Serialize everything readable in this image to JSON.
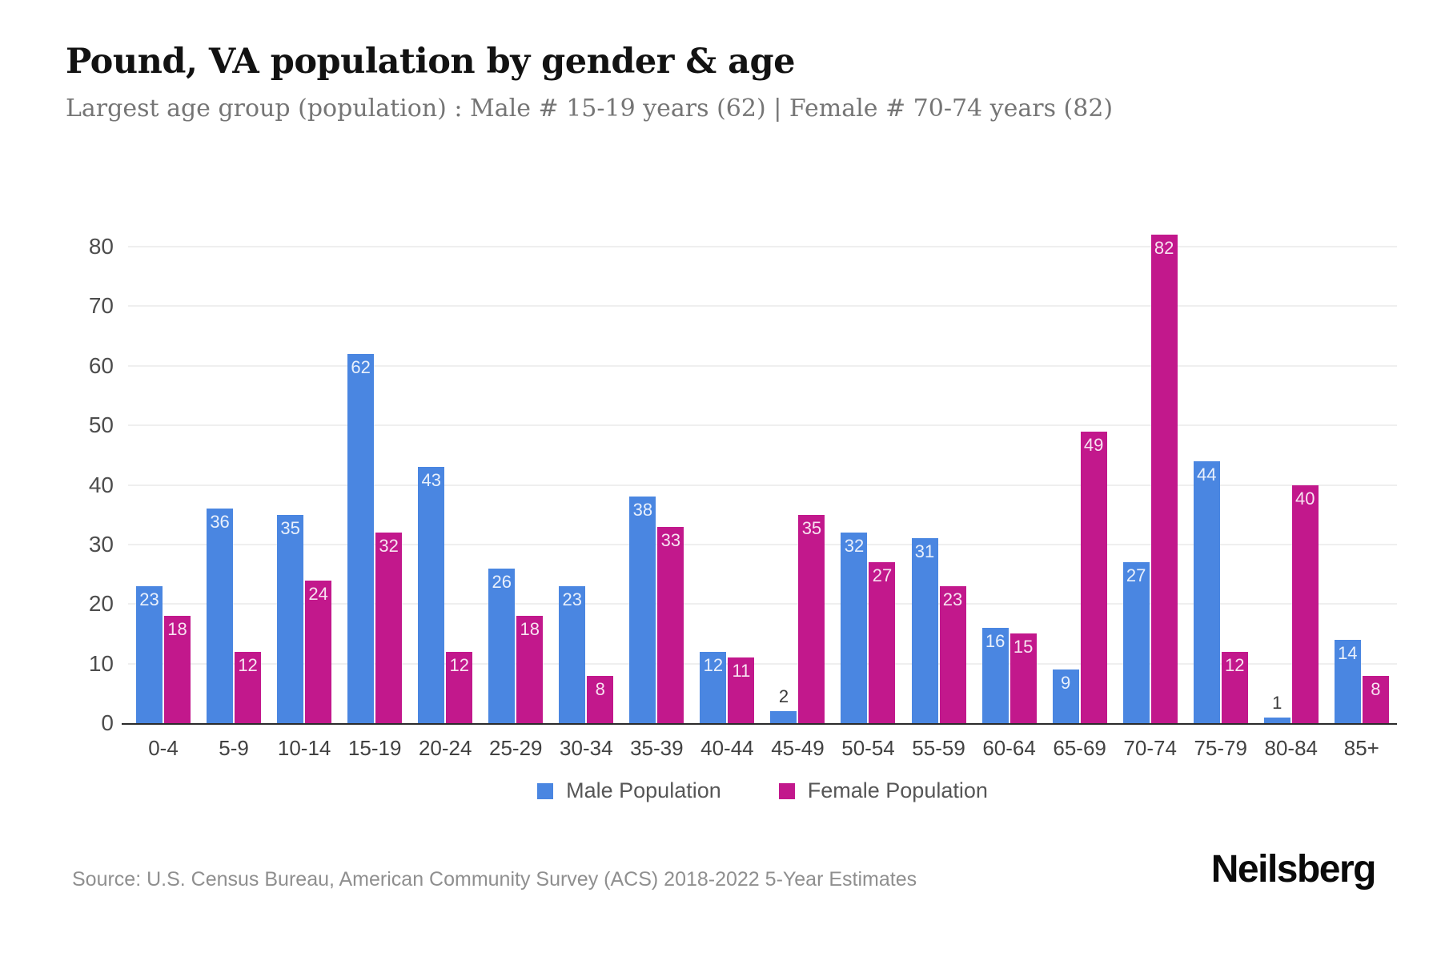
{
  "header": {
    "title": "Pound, VA population by gender & age",
    "subtitle": "Largest age group (population) : Male # 15-19 years (62) | Female # 70-74 years (82)"
  },
  "chart_data": {
    "type": "bar",
    "title": "Pound, VA population by gender & age",
    "categories": [
      "0-4",
      "5-9",
      "10-14",
      "15-19",
      "20-24",
      "25-29",
      "30-34",
      "35-39",
      "40-44",
      "45-49",
      "50-54",
      "55-59",
      "60-64",
      "65-69",
      "70-74",
      "75-79",
      "80-84",
      "85+"
    ],
    "series": [
      {
        "name": "Male Population",
        "color": "#4A86E1",
        "values": [
          23,
          36,
          35,
          62,
          43,
          26,
          23,
          38,
          12,
          2,
          32,
          31,
          16,
          9,
          27,
          44,
          1,
          14
        ]
      },
      {
        "name": "Female Population",
        "color": "#C2188C",
        "values": [
          18,
          12,
          24,
          32,
          12,
          18,
          8,
          33,
          11,
          35,
          27,
          23,
          15,
          49,
          82,
          12,
          40,
          8
        ]
      }
    ],
    "xlabel": "",
    "ylabel": "",
    "yticks": [
      0,
      10,
      20,
      30,
      40,
      50,
      60,
      70,
      80
    ],
    "ylim": [
      0,
      80
    ],
    "grid": true,
    "legend_position": "bottom",
    "bar_value_labels": true
  },
  "colors": {
    "male_bar": "#4A86E1",
    "female_bar": "#C2188C",
    "gridline": "#EFEFEF",
    "axis": "#2B2B2B"
  },
  "footer": {
    "source": "Source: U.S. Census Bureau, American Community Survey (ACS) 2018-2022 5-Year Estimates",
    "brand": "Neilsberg"
  }
}
